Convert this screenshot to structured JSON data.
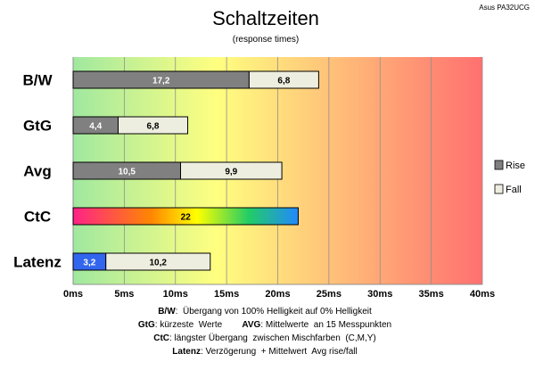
{
  "chart_data": {
    "type": "bar",
    "orientation": "horizontal",
    "stacked": true,
    "title": "Schaltzeiten",
    "subtitle": "(response times)",
    "corner_label": "Asus PA32UCG",
    "categories": [
      "B/W",
      "GtG",
      "Avg",
      "CtC",
      "Latenz"
    ],
    "series": [
      {
        "name": "Rise",
        "values": [
          17.2,
          4.4,
          10.5,
          null,
          null
        ]
      },
      {
        "name": "Fall",
        "values": [
          6.8,
          6.8,
          9.9,
          null,
          10.2
        ]
      }
    ],
    "ctc_value": 22,
    "latency_delay": 3.2,
    "data_labels": [
      [
        "17,2",
        "6,8"
      ],
      [
        "4,4",
        "6,8"
      ],
      [
        "10,5",
        "9,9"
      ],
      [
        "22"
      ],
      [
        "3,2",
        "10,2"
      ]
    ],
    "x_ticks": [
      "0ms",
      "5ms",
      "10ms",
      "15ms",
      "20ms",
      "25ms",
      "30ms",
      "35ms",
      "40ms"
    ],
    "xlim": [
      0,
      40
    ],
    "grid": true,
    "legend_placement": "right",
    "colors": {
      "rise": "#808080",
      "fall": "#EEEEE0",
      "latency_delay": "#3366EE",
      "background_gradient": [
        "#A0E8A0",
        "#FFFF80",
        "#FF7070"
      ],
      "ctc_gradient": [
        "#FF2288",
        "#FF8800",
        "#FFFF00",
        "#22CC66",
        "#2288FF"
      ]
    },
    "footnotes": [
      {
        "bold": "B/W",
        "text": ":  Übergang von 100% Helligkeit auf 0% Helligkeit"
      },
      {
        "bold": "GtG",
        "text": ": kürzeste  Werte        ",
        "bold2": "AVG",
        "text2": ": Mittelwerte  an 15 Messpunkten"
      },
      {
        "bold": "CtC",
        "text": ": längster Übergang  zwischen Mischfarben  (C,M,Y)"
      },
      {
        "bold": "Latenz",
        "text": ": Verzögerung  + Mittelwert  Avg rise/fall"
      }
    ]
  }
}
